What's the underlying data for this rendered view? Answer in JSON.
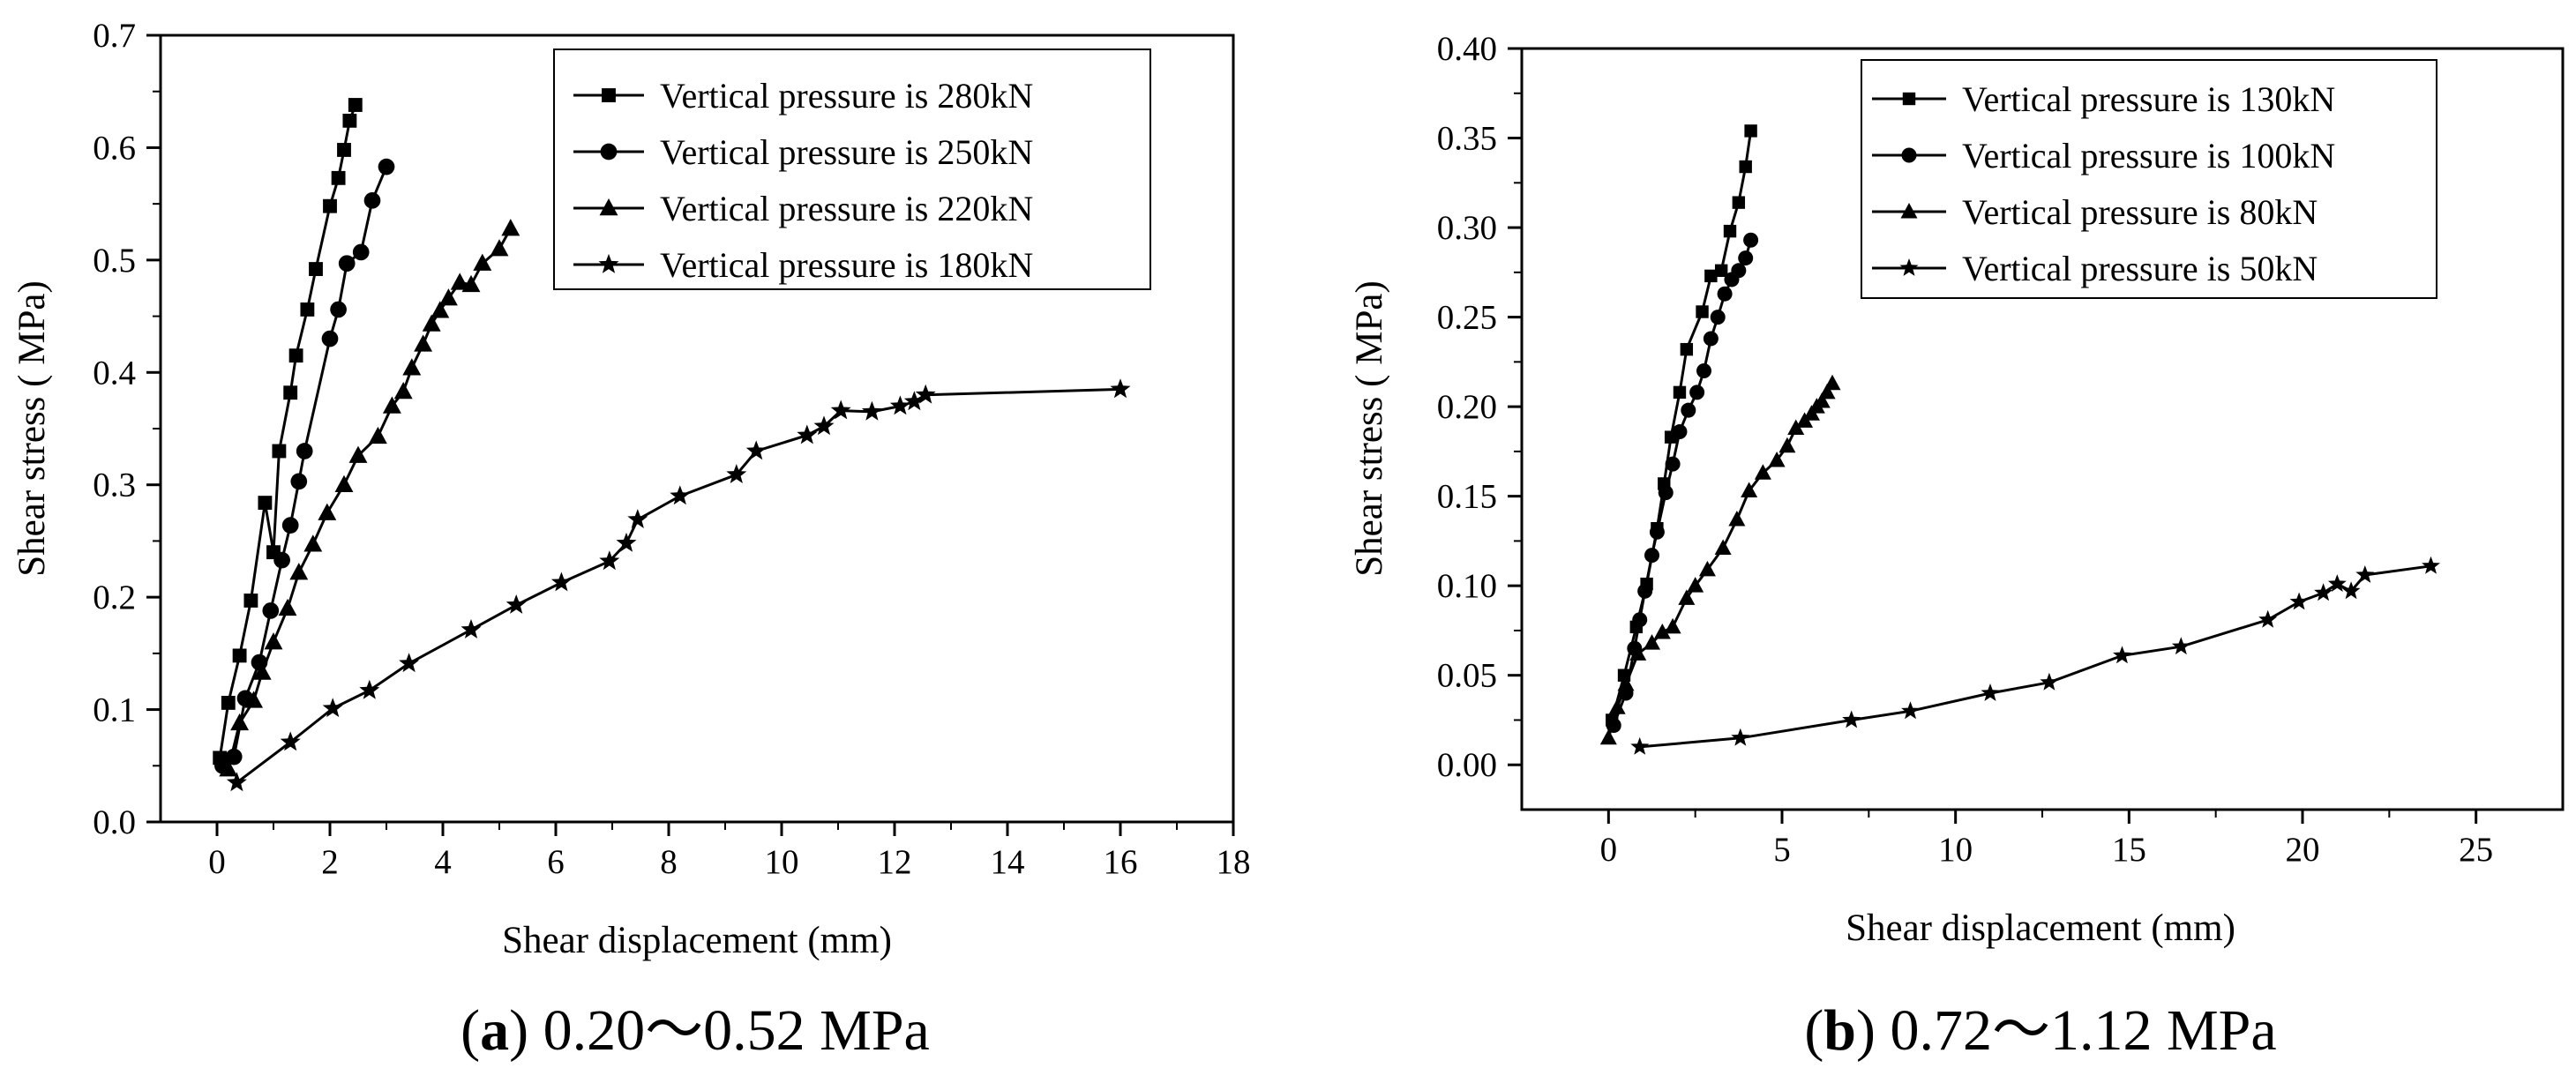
{
  "figure": {
    "caption_a": {
      "letter": "a",
      "text": "0.20～0.52 MPa"
    },
    "caption_b": {
      "letter": "b",
      "text": "0.72～1.12 MPa"
    }
  },
  "chart_data": [
    {
      "id": "a",
      "type": "line",
      "xlabel": "Shear displacement  (mm)",
      "ylabel": "Shear stress (   MPa)",
      "xlim": [
        -1,
        18
      ],
      "ylim": [
        0,
        0.7
      ],
      "xticks": [
        0,
        2,
        4,
        6,
        8,
        10,
        12,
        14,
        16,
        18
      ],
      "yticks": [
        0.0,
        0.1,
        0.2,
        0.3,
        0.4,
        0.5,
        0.6,
        0.7
      ],
      "xtick_labels": [
        "0",
        "2",
        "4",
        "6",
        "8",
        "10",
        "12",
        "14",
        "16",
        "18"
      ],
      "ytick_labels": [
        "0.0",
        "0.1",
        "0.2",
        "0.3",
        "0.4",
        "0.5",
        "0.6",
        "0.7"
      ],
      "legend_position": "top-right",
      "series": [
        {
          "name": "Vertical pressure is 280kN",
          "marker": "square",
          "x": [
            0.05,
            0.2,
            0.4,
            0.6,
            0.85,
            1.0,
            1.1,
            1.3,
            1.4,
            1.6,
            1.75,
            2.0,
            2.15,
            2.25,
            2.35,
            2.45
          ],
          "y": [
            0.057,
            0.106,
            0.148,
            0.197,
            0.284,
            0.24,
            0.33,
            0.382,
            0.415,
            0.456,
            0.492,
            0.548,
            0.573,
            0.598,
            0.624,
            0.638
          ]
        },
        {
          "name": "Vertical pressure is 250kN",
          "marker": "circle",
          "x": [
            0.1,
            0.3,
            0.5,
            0.75,
            0.95,
            1.15,
            1.3,
            1.45,
            1.55,
            2.0,
            2.15,
            2.3,
            2.55,
            2.75,
            3.0
          ],
          "y": [
            0.05,
            0.058,
            0.11,
            0.142,
            0.188,
            0.233,
            0.264,
            0.303,
            0.33,
            0.43,
            0.456,
            0.497,
            0.507,
            0.553,
            0.583
          ]
        },
        {
          "name": "Vertical pressure is 220kN",
          "marker": "triangle",
          "x": [
            0.2,
            0.4,
            0.65,
            0.8,
            1.0,
            1.25,
            1.45,
            1.7,
            1.95,
            2.25,
            2.5,
            2.85,
            3.1,
            3.3,
            3.45,
            3.65,
            3.8,
            3.95,
            4.1,
            4.3,
            4.5,
            4.7,
            5.0,
            5.2
          ],
          "y": [
            0.047,
            0.088,
            0.108,
            0.133,
            0.16,
            0.19,
            0.222,
            0.247,
            0.275,
            0.3,
            0.326,
            0.343,
            0.37,
            0.383,
            0.404,
            0.425,
            0.443,
            0.455,
            0.466,
            0.48,
            0.478,
            0.497,
            0.51,
            0.528
          ]
        },
        {
          "name": "Vertical pressure is 180kN",
          "marker": "star",
          "x": [
            0.35,
            1.3,
            2.05,
            2.7,
            3.4,
            4.5,
            5.3,
            6.1,
            6.95,
            7.25,
            7.45,
            8.2,
            9.2,
            9.55,
            10.45,
            10.75,
            11.05,
            11.6,
            12.1,
            12.35,
            12.55,
            16.0
          ],
          "y": [
            0.035,
            0.071,
            0.101,
            0.117,
            0.141,
            0.171,
            0.193,
            0.213,
            0.232,
            0.248,
            0.269,
            0.29,
            0.309,
            0.33,
            0.344,
            0.352,
            0.366,
            0.365,
            0.37,
            0.374,
            0.38,
            0.385
          ]
        }
      ]
    },
    {
      "id": "b",
      "type": "line",
      "xlabel": "Shear displacement  (mm)",
      "ylabel": "Shear stress (   MPa)",
      "xlim": [
        -2.5,
        27.5
      ],
      "ylim": [
        -0.025,
        0.4
      ],
      "xticks": [
        0,
        5,
        10,
        15,
        20,
        25
      ],
      "yticks": [
        0.0,
        0.05,
        0.1,
        0.15,
        0.2,
        0.25,
        0.3,
        0.35,
        0.4
      ],
      "xtick_labels": [
        "0",
        "5",
        "10",
        "15",
        "20",
        "25"
      ],
      "ytick_labels": [
        "0.00",
        "0.05",
        "0.10",
        "0.15",
        "0.20",
        "0.25",
        "0.30",
        "0.35",
        "0.40"
      ],
      "legend_position": "top-right",
      "series": [
        {
          "name": "Vertical pressure is 130kN",
          "marker": "square",
          "x": [
            0.1,
            0.45,
            0.8,
            1.1,
            1.4,
            1.6,
            1.8,
            2.05,
            2.25,
            2.7,
            2.95,
            3.25,
            3.5,
            3.75,
            3.95,
            4.1
          ],
          "y": [
            0.025,
            0.05,
            0.077,
            0.101,
            0.132,
            0.157,
            0.183,
            0.208,
            0.232,
            0.253,
            0.273,
            0.276,
            0.298,
            0.314,
            0.334,
            0.354
          ]
        },
        {
          "name": "Vertical pressure is 100kN",
          "marker": "circle",
          "x": [
            0.15,
            0.5,
            0.75,
            0.9,
            1.05,
            1.25,
            1.4,
            1.65,
            1.85,
            2.05,
            2.3,
            2.55,
            2.75,
            2.95,
            3.15,
            3.35,
            3.55,
            3.75,
            3.95,
            4.1
          ],
          "y": [
            0.022,
            0.04,
            0.065,
            0.081,
            0.097,
            0.117,
            0.13,
            0.152,
            0.168,
            0.186,
            0.198,
            0.208,
            0.22,
            0.238,
            0.25,
            0.263,
            0.271,
            0.276,
            0.283,
            0.293
          ]
        },
        {
          "name": "Vertical pressure is 80kN",
          "marker": "triangle",
          "x": [
            0.0,
            0.25,
            0.5,
            0.85,
            1.25,
            1.55,
            1.85,
            2.25,
            2.5,
            2.85,
            3.3,
            3.7,
            4.05,
            4.45,
            4.85,
            5.15,
            5.4,
            5.65,
            5.85,
            6.0,
            6.15,
            6.3,
            6.45
          ],
          "y": [
            0.015,
            0.032,
            0.045,
            0.062,
            0.068,
            0.074,
            0.077,
            0.093,
            0.1,
            0.109,
            0.121,
            0.137,
            0.153,
            0.163,
            0.17,
            0.178,
            0.188,
            0.192,
            0.196,
            0.2,
            0.203,
            0.208,
            0.213
          ]
        },
        {
          "name": "Vertical pressure is 50kN",
          "marker": "star",
          "x": [
            0.9,
            3.8,
            7.0,
            8.7,
            11.0,
            12.7,
            14.8,
            16.5,
            19.0,
            19.9,
            20.6,
            21.0,
            21.4,
            21.8,
            23.7
          ],
          "y": [
            0.01,
            0.015,
            0.025,
            0.03,
            0.04,
            0.046,
            0.061,
            0.066,
            0.081,
            0.091,
            0.096,
            0.101,
            0.097,
            0.106,
            0.111
          ]
        }
      ]
    }
  ]
}
